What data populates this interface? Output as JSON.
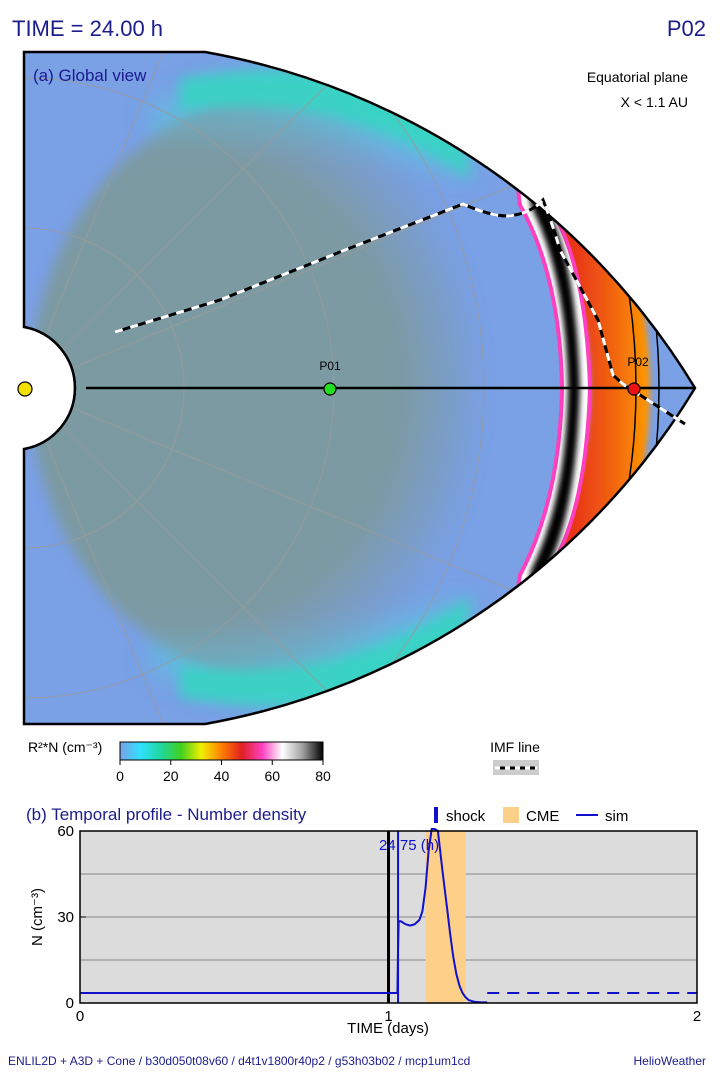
{
  "header": {
    "time_label": "TIME = 24.00 h",
    "probe_label": "P02"
  },
  "global_view": {
    "panel_title": "(a) Global view",
    "plane_label": "Equatorial plane",
    "range_label": "X < 1.1 AU",
    "probes": [
      {
        "name": "P01",
        "color": "#22dd22"
      },
      {
        "name": "P02",
        "color": "#ee1111"
      }
    ],
    "sun_color": "#f2e100",
    "background_color": "#7aa0e6"
  },
  "colorbar": {
    "label": "R²*N (cm⁻³)",
    "ticks": [
      "0",
      "20",
      "40",
      "60",
      "80"
    ],
    "stops": [
      "#7aa0e6",
      "#30e0ff",
      "#20d8a0",
      "#40d020",
      "#f0f000",
      "#ff8000",
      "#e02020",
      "#ff40c0",
      "#ffffff",
      "#a0a0a0",
      "#000000"
    ]
  },
  "imf_legend": {
    "label": "IMF line"
  },
  "legend": {
    "shock": "shock",
    "cme": "CME",
    "sim": "sim",
    "shock_color": "#1111cc",
    "cme_color": "#fdd08a",
    "sim_color": "#1111cc"
  },
  "chart_data": {
    "type": "line",
    "title": "(b) Temporal profile - Number density",
    "xlabel": "TIME (days)",
    "ylabel": "N (cm⁻³)",
    "xlim": [
      0,
      2
    ],
    "ylim": [
      0,
      60
    ],
    "x_ticks": [
      "0",
      "1",
      "2"
    ],
    "y_ticks": [
      "0",
      "30",
      "60"
    ],
    "gridlines_y": [
      15,
      30,
      45
    ],
    "current_time_days": 1.0,
    "shock_time_days": 1.031,
    "shock_label": "24.75 (h)",
    "cme_interval_days": [
      1.12,
      1.25
    ],
    "series": [
      {
        "name": "sim",
        "x": [
          0,
          1.0,
          1.029,
          1.031,
          1.033,
          1.04,
          1.055,
          1.07,
          1.085,
          1.1,
          1.11,
          1.12,
          1.13,
          1.14,
          1.15,
          1.16,
          1.175,
          1.19,
          1.2,
          1.21,
          1.22,
          1.23,
          1.24,
          1.25,
          1.26,
          1.28,
          1.3,
          1.32
        ],
        "y": [
          3.5,
          3.5,
          3.5,
          20,
          28.5,
          28.5,
          27.5,
          27,
          27.5,
          29,
          32,
          40,
          53,
          62,
          63,
          60,
          46,
          33,
          24,
          16,
          10,
          6,
          3.5,
          2,
          1,
          0.4,
          0.2,
          0.2
        ]
      }
    ],
    "forecast_continuation": {
      "x": [
        1.32,
        2.0
      ],
      "y": [
        3.5,
        3.5
      ]
    }
  },
  "footer": {
    "left": "ENLIL2D + A3D + Cone / b30d050t08v60 / d4t1v1800r40p2 / g53h03b02 / mcp1um1cd",
    "right": "HelioWeather"
  }
}
